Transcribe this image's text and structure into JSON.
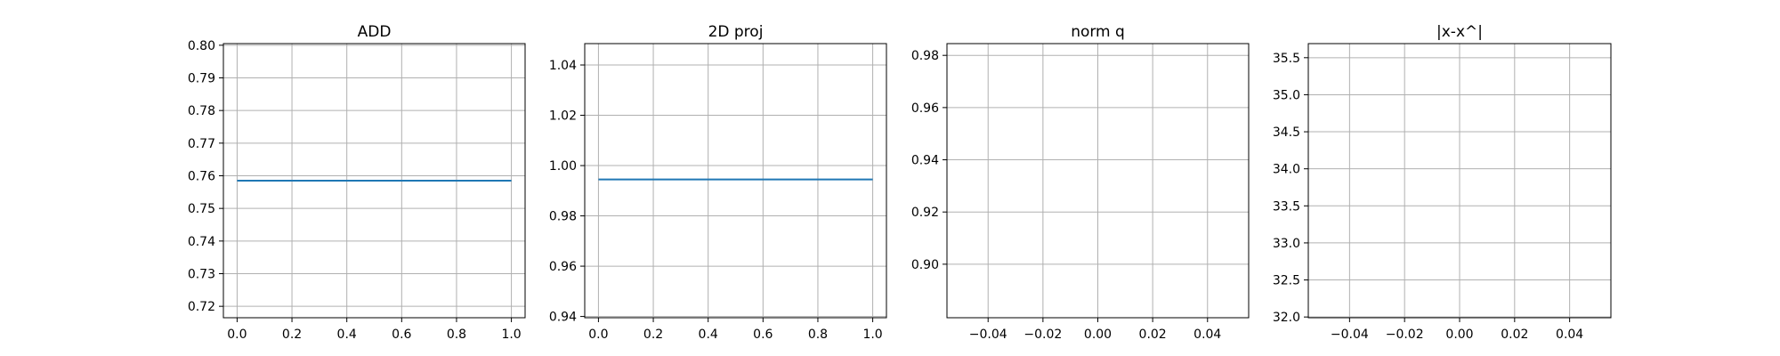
{
  "chart_data": [
    {
      "type": "line",
      "title": "ADD",
      "xlabel": "",
      "ylabel": "",
      "xlim": [
        -0.05,
        1.05
      ],
      "ylim": [
        0.7165,
        0.8005
      ],
      "xticks": [
        0.0,
        0.2,
        0.4,
        0.6,
        0.8,
        1.0
      ],
      "xtick_labels": [
        "0.0",
        "0.2",
        "0.4",
        "0.6",
        "0.8",
        "1.0"
      ],
      "yticks": [
        0.72,
        0.73,
        0.74,
        0.75,
        0.76,
        0.77,
        0.78,
        0.79,
        0.8
      ],
      "ytick_labels": [
        "0.72",
        "0.73",
        "0.74",
        "0.75",
        "0.76",
        "0.77",
        "0.78",
        "0.79",
        "0.80"
      ],
      "grid": true,
      "series": [
        {
          "x": [
            0.0,
            1.0
          ],
          "y": [
            0.7585,
            0.7585
          ],
          "color": "#1f77b4"
        }
      ]
    },
    {
      "type": "line",
      "title": "2D proj",
      "xlabel": "",
      "ylabel": "",
      "xlim": [
        -0.05,
        1.05
      ],
      "ylim": [
        0.9395,
        1.0485
      ],
      "xticks": [
        0.0,
        0.2,
        0.4,
        0.6,
        0.8,
        1.0
      ],
      "xtick_labels": [
        "0.0",
        "0.2",
        "0.4",
        "0.6",
        "0.8",
        "1.0"
      ],
      "yticks": [
        0.94,
        0.96,
        0.98,
        1.0,
        1.02,
        1.04
      ],
      "ytick_labels": [
        "0.94",
        "0.96",
        "0.98",
        "1.00",
        "1.02",
        "1.04"
      ],
      "grid": true,
      "series": [
        {
          "x": [
            0.0,
            1.0
          ],
          "y": [
            0.9945,
            0.9945
          ],
          "color": "#1f77b4"
        }
      ]
    },
    {
      "type": "line",
      "title": "norm q",
      "xlabel": "",
      "ylabel": "",
      "xlim": [
        -0.055,
        0.055
      ],
      "ylim": [
        0.8795,
        0.9845
      ],
      "xticks": [
        -0.04,
        -0.02,
        0.0,
        0.02,
        0.04
      ],
      "xtick_labels": [
        "−0.04",
        "−0.02",
        "0.00",
        "0.02",
        "0.04"
      ],
      "yticks": [
        0.9,
        0.92,
        0.94,
        0.96,
        0.98
      ],
      "ytick_labels": [
        "0.90",
        "0.92",
        "0.94",
        "0.96",
        "0.98"
      ],
      "grid": true,
      "series": []
    },
    {
      "type": "line",
      "title": "|x-x^|",
      "xlabel": "",
      "ylabel": "",
      "xlim": [
        -0.055,
        0.055
      ],
      "ylim": [
        31.99,
        35.69
      ],
      "xticks": [
        -0.04,
        -0.02,
        0.0,
        0.02,
        0.04
      ],
      "xtick_labels": [
        "−0.04",
        "−0.02",
        "0.00",
        "0.02",
        "0.04"
      ],
      "yticks": [
        32.0,
        32.5,
        33.0,
        33.5,
        34.0,
        34.5,
        35.0,
        35.5
      ],
      "ytick_labels": [
        "32.0",
        "32.5",
        "33.0",
        "33.5",
        "34.0",
        "34.5",
        "35.0",
        "35.5"
      ],
      "grid": true,
      "series": []
    }
  ]
}
